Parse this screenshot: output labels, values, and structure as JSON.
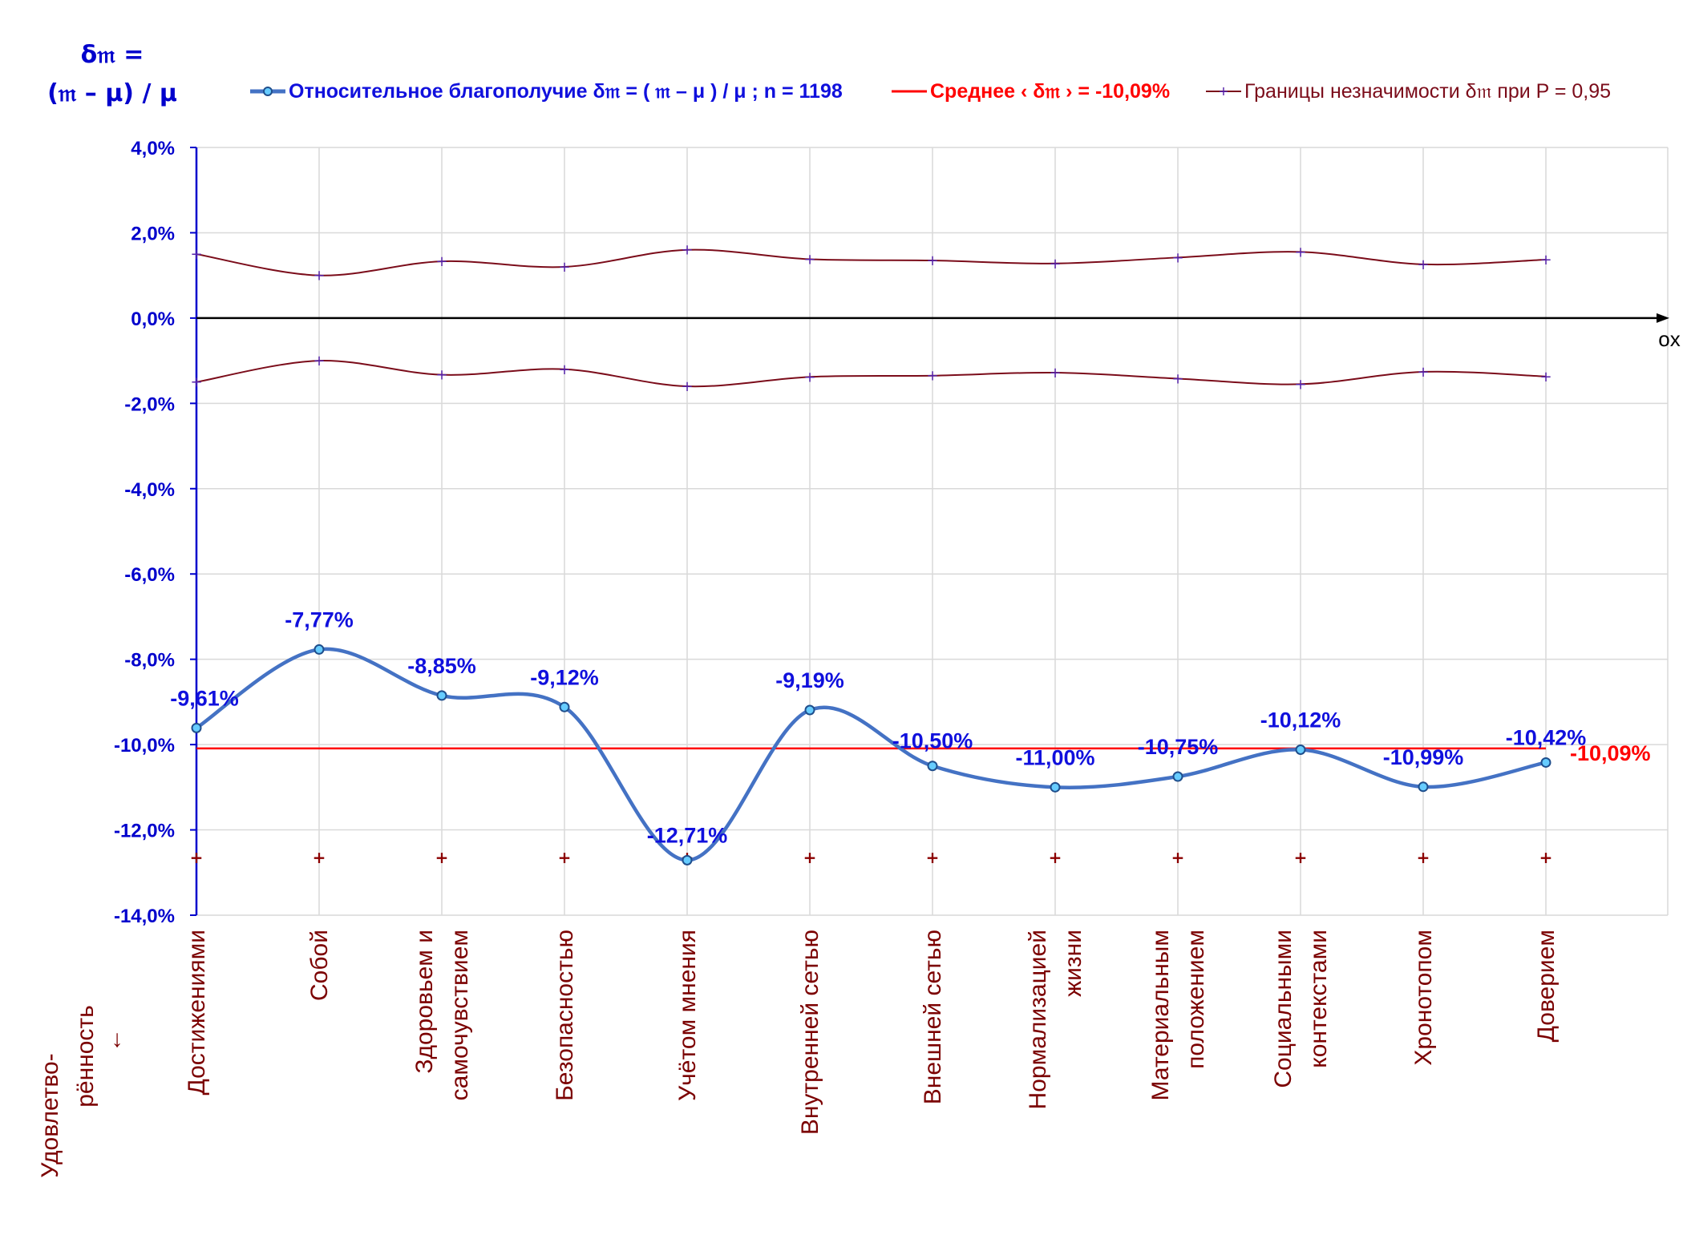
{
  "chart_data": {
    "type": "line",
    "y_axis_title_line1": "δ𝔪 =",
    "y_axis_title_line2": "(𝔪 – μ) / μ",
    "x_axis_end_label": "ox",
    "x_axis_title_line1": "Удовлетво-",
    "x_axis_title_line2": "рённость",
    "x_axis_title_arrow": "↓",
    "ylim": [
      -14,
      4
    ],
    "y_ticks": [
      "4,0%",
      "2,0%",
      "0,0%",
      "-2,0%",
      "-4,0%",
      "-6,0%",
      "-8,0%",
      "-10,0%",
      "-12,0%",
      "-14,0%"
    ],
    "grid": true,
    "legend_position": "top",
    "categories": [
      [
        "Достижениями"
      ],
      [
        "Собой"
      ],
      [
        "Здоровьем и",
        "самочувствием"
      ],
      [
        "Безопасностью"
      ],
      [
        "Учётом мнения"
      ],
      [
        "Внутренней сетью"
      ],
      [
        "Внешней сетью"
      ],
      [
        "Нормализацией",
        "жизни"
      ],
      [
        "Материальным",
        "положением"
      ],
      [
        "Социальными",
        "контекстами"
      ],
      [
        "Хронотопом"
      ],
      [
        "Доверием"
      ]
    ],
    "series": [
      {
        "name": "Относительное благополучие δ𝔪 = ( 𝔪 – μ ) / μ ; n = 1198",
        "color": "#4472c4",
        "values": [
          -9.61,
          -7.77,
          -8.85,
          -9.12,
          -12.71,
          -9.19,
          -10.5,
          -11.0,
          -10.75,
          -10.12,
          -10.99,
          -10.42
        ],
        "labels": [
          "-9,61%",
          "-7,77%",
          "-8,85%",
          "-9,12%",
          "-12,71%",
          "-9,19%",
          "-10,50%",
          "-11,00%",
          "-10,75%",
          "-10,12%",
          "-10,99%",
          "-10,42%"
        ]
      },
      {
        "name": "Среднее ‹ δ𝔪 › = -10,09%",
        "color": "#ff0000",
        "value": -10.09,
        "label": "-10,09%"
      },
      {
        "name": "Границы незначимости δ𝔪 при P = 0,95",
        "color": "#7b0c1a",
        "upper": [
          1.5,
          1.0,
          1.33,
          1.2,
          1.6,
          1.38,
          1.35,
          1.28,
          1.42,
          1.55,
          1.26,
          1.37
        ],
        "lower": [
          -1.5,
          -1.0,
          -1.33,
          -1.2,
          -1.6,
          -1.38,
          -1.35,
          -1.28,
          -1.42,
          -1.55,
          -1.26,
          -1.37
        ]
      }
    ],
    "marker_row_value": -12.65
  }
}
